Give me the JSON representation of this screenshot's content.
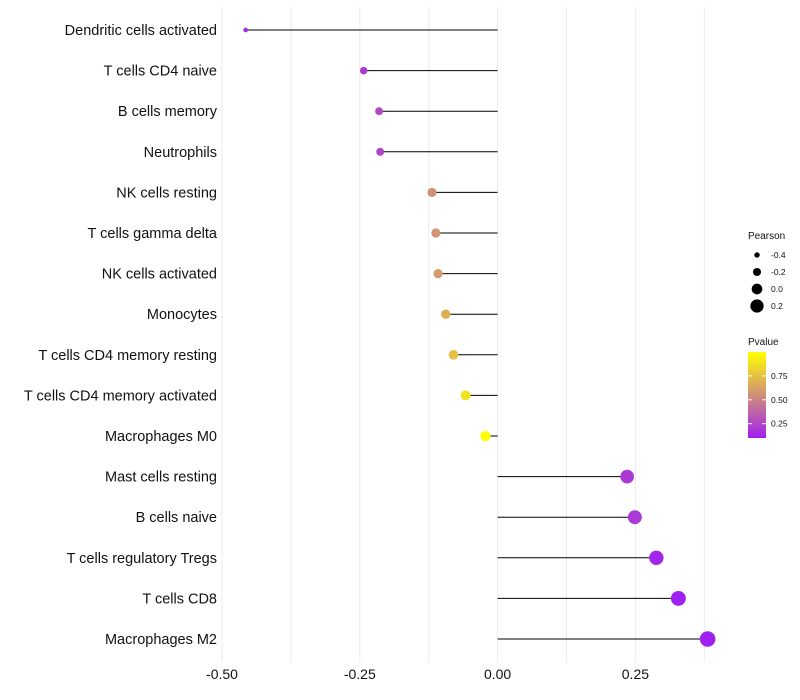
{
  "chart_data": {
    "type": "lollipop",
    "x_axis": {
      "lim": [
        -0.5,
        0.4
      ],
      "ticks": [
        -0.5,
        -0.25,
        0.0,
        0.25
      ],
      "tick_labels": [
        "-0.50",
        "-0.25",
        "0.00",
        "0.25"
      ],
      "minor_gridlines": [
        -0.375,
        -0.125,
        0.125,
        0.375
      ]
    },
    "categories": [
      "Dendritic cells activated",
      "T cells CD4 naive",
      "B cells memory",
      "Neutrophils",
      "NK cells resting",
      "T cells gamma delta",
      "NK cells activated",
      "Monocytes",
      "T cells CD4 memory resting",
      "T cells CD4 memory activated",
      "Macrophages M0",
      "Mast cells resting",
      "B cells naive",
      "T cells regulatory  Tregs",
      "T cells CD8",
      "Macrophages M2"
    ],
    "pearson": [
      -0.457,
      -0.243,
      -0.215,
      -0.213,
      -0.119,
      -0.112,
      -0.108,
      -0.094,
      -0.08,
      -0.058,
      -0.022,
      0.235,
      0.249,
      0.288,
      0.328,
      0.381
    ],
    "pvalue": [
      0.15,
      0.2,
      0.25,
      0.25,
      0.55,
      0.57,
      0.6,
      0.68,
      0.75,
      0.88,
      1.0,
      0.2,
      0.2,
      0.12,
      0.08,
      0.05
    ],
    "legend": {
      "size_title": "Pearson",
      "size_labels": [
        "-0.4",
        "-0.2",
        "0.0",
        "0.2"
      ],
      "size_values": [
        -0.4,
        -0.2,
        0.0,
        0.2
      ],
      "color_title": "Pvalue",
      "color_labels": [
        "0.75",
        "0.50",
        "0.25"
      ],
      "color_values": [
        0.75,
        0.5,
        0.25
      ],
      "color_range": [
        0.1,
        1.0
      ],
      "low_color": "#a020f0",
      "high_color": "#ffff00",
      "position": "right"
    },
    "stem_color": "#000000",
    "grid_color": "#ebebeb"
  }
}
